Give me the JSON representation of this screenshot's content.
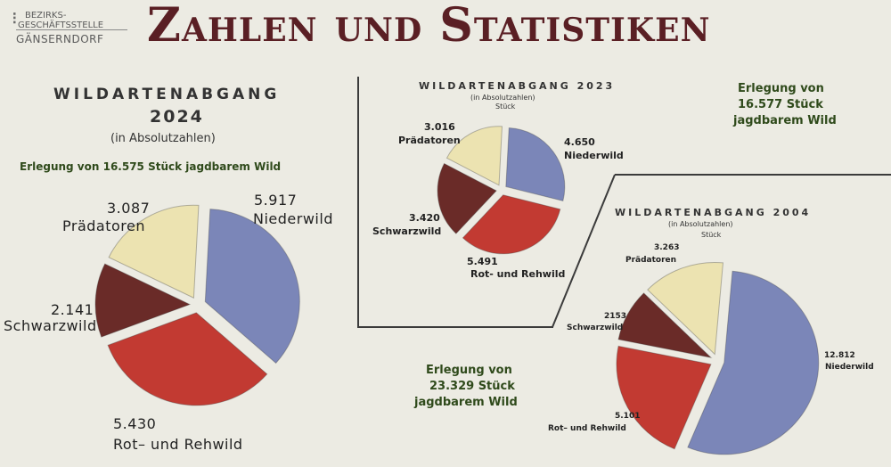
{
  "logo": {
    "line1": "BEZIRKS-",
    "line2": "GESCHÄFTSSTELLE",
    "line3": "GÄNSERNDORF"
  },
  "headline": "Zahlen und Statistiken",
  "panels": {
    "p2024": {
      "title": "WILDARTENABGANG",
      "year": "2024",
      "subtitle": "(in Absolutzahlen)",
      "caption": "Erlegung von 16.575 Stück jagdbarem Wild"
    },
    "p2023": {
      "title": "WILDARTENABGANG 2023",
      "subtitle1": "(in Absolutzahlen)",
      "subtitle2": "Stück",
      "caption_l1": "Erlegung von",
      "caption_l2": "16.577 Stück",
      "caption_l3": "jagdbarem Wild"
    },
    "p2004": {
      "title": "WILDARTENABGANG 2004",
      "subtitle1": "(in Absolutzahlen)",
      "subtitle2": "Stück",
      "caption_l1": "Erlegung von",
      "caption_l2": "23.329 Stück",
      "caption_l3": "jagdbarem Wild"
    }
  },
  "colors": {
    "Niederwild": "#7b86b8",
    "Rot- und Rehwild": "#c23a32",
    "Schwarzwild": "#6a2b28",
    "Prädatoren": "#ece3b1",
    "headline": "#5a1f24",
    "caption": "#2f4a1b"
  },
  "chart_data": [
    {
      "type": "pie",
      "year": "2024",
      "categories": [
        "Niederwild",
        "Rot- und Rehwild",
        "Schwarzwild",
        "Prädatoren"
      ],
      "values": [
        5917,
        5430,
        2141,
        3087
      ],
      "value_labels": [
        "5.917",
        "5.430",
        "2.141",
        "3.087"
      ],
      "category_labels": [
        "Niederwild",
        "Rot– und Rehwild",
        "Schwarzwild",
        "Prädatoren"
      ]
    },
    {
      "type": "pie",
      "year": "2023",
      "categories": [
        "Niederwild",
        "Rot- und Rehwild",
        "Schwarzwild",
        "Prädatoren"
      ],
      "values": [
        4650,
        5491,
        3420,
        3016
      ],
      "value_labels": [
        "4.650",
        "5.491",
        "3.420",
        "3.016"
      ],
      "category_labels": [
        "Niederwild",
        "Rot- und Rehwild",
        "Schwarzwild",
        "Prädatoren"
      ]
    },
    {
      "type": "pie",
      "year": "2004",
      "categories": [
        "Niederwild",
        "Rot- und Rehwild",
        "Schwarzwild",
        "Prädatoren"
      ],
      "values": [
        12812,
        5101,
        2153,
        3263
      ],
      "value_labels": [
        "12.812",
        "5.101",
        "2153",
        "3.263"
      ],
      "category_labels": [
        "Niederwild",
        "Rot– und Rehwild",
        "Schwarzwild",
        "Prädatoren"
      ]
    }
  ]
}
